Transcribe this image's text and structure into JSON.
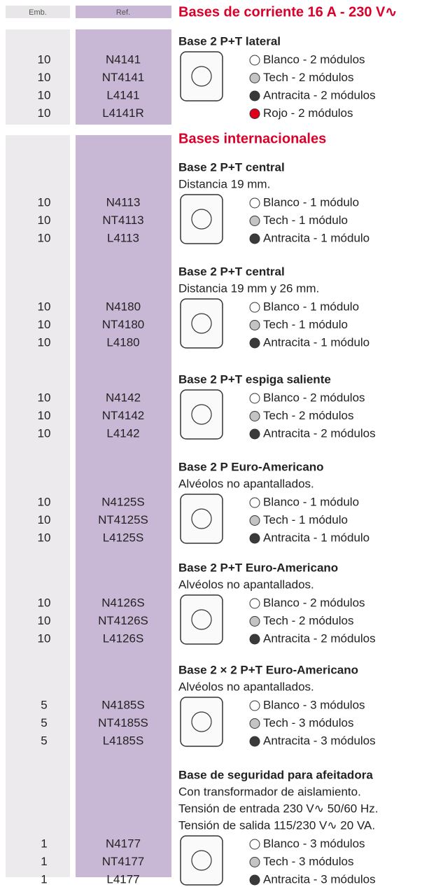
{
  "header": {
    "emb": "Emb.",
    "ref": "Ref.",
    "title": "Bases de corriente 16 A - 230 V∿"
  },
  "sections": [
    {
      "products": [
        {
          "title": "Base 2 P+T lateral",
          "notes": [],
          "items": [
            {
              "emb": 10,
              "ref": "N4141",
              "color": "#ffffff",
              "label": "Blanco - 2 módulos"
            },
            {
              "emb": 10,
              "ref": "NT4141",
              "color": "#c4c4c4",
              "label": "Tech - 2 módulos"
            },
            {
              "emb": 10,
              "ref": "L4141",
              "color": "#3a3a3a",
              "label": "Antracita - 2 módulos"
            },
            {
              "emb": 10,
              "ref": "L4141R",
              "color": "#e0001a",
              "label": "Rojo - 2 módulos"
            }
          ]
        }
      ]
    },
    {
      "title": "Bases internacionales",
      "products": [
        {
          "title": "Base 2 P+T central",
          "notes": [
            "Distancia 19 mm."
          ],
          "items": [
            {
              "emb": 10,
              "ref": "N4113",
              "color": "#ffffff",
              "label": "Blanco - 1 módulo"
            },
            {
              "emb": 10,
              "ref": "NT4113",
              "color": "#c4c4c4",
              "label": "Tech - 1 módulo"
            },
            {
              "emb": 10,
              "ref": "L4113",
              "color": "#3a3a3a",
              "label": "Antracita - 1 módulo"
            }
          ]
        },
        {
          "title": "Base 2 P+T central",
          "notes": [
            "Distancia 19 mm y 26 mm."
          ],
          "items": [
            {
              "emb": 10,
              "ref": "N4180",
              "color": "#ffffff",
              "label": "Blanco - 1 módulo"
            },
            {
              "emb": 10,
              "ref": "NT4180",
              "color": "#c4c4c4",
              "label": "Tech - 1 módulo"
            },
            {
              "emb": 10,
              "ref": "L4180",
              "color": "#3a3a3a",
              "label": "Antracita - 1 módulo"
            }
          ]
        },
        {
          "title": "Base 2 P+T espiga saliente",
          "notes": [],
          "items": [
            {
              "emb": 10,
              "ref": "N4142",
              "color": "#ffffff",
              "label": "Blanco - 2 módulos"
            },
            {
              "emb": 10,
              "ref": "NT4142",
              "color": "#c4c4c4",
              "label": "Tech - 2 módulos"
            },
            {
              "emb": 10,
              "ref": "L4142",
              "color": "#3a3a3a",
              "label": "Antracita - 2 módulos"
            }
          ]
        },
        {
          "title": "Base 2 P Euro-Americano",
          "notes": [
            "Alvéolos no apantallados."
          ],
          "items": [
            {
              "emb": 10,
              "ref": "N4125S",
              "color": "#ffffff",
              "label": "Blanco - 1 módulo"
            },
            {
              "emb": 10,
              "ref": "NT4125S",
              "color": "#c4c4c4",
              "label": "Tech - 1 módulo"
            },
            {
              "emb": 10,
              "ref": "L4125S",
              "color": "#3a3a3a",
              "label": "Antracita - 1 módulo"
            }
          ]
        },
        {
          "title": "Base 2 P+T Euro-Americano",
          "notes": [
            "Alvéolos no apantallados."
          ],
          "items": [
            {
              "emb": 10,
              "ref": "N4126S",
              "color": "#ffffff",
              "label": "Blanco - 2 módulos"
            },
            {
              "emb": 10,
              "ref": "NT4126S",
              "color": "#c4c4c4",
              "label": "Tech - 2 módulos"
            },
            {
              "emb": 10,
              "ref": "L4126S",
              "color": "#3a3a3a",
              "label": "Antracita - 2 módulos"
            }
          ]
        },
        {
          "title": "Base 2 × 2 P+T Euro-Americano",
          "notes": [
            "Alvéolos no apantallados."
          ],
          "items": [
            {
              "emb": 5,
              "ref": "N4185S",
              "color": "#ffffff",
              "label": "Blanco - 3 módulos"
            },
            {
              "emb": 5,
              "ref": "NT4185S",
              "color": "#c4c4c4",
              "label": "Tech - 3 módulos"
            },
            {
              "emb": 5,
              "ref": "L4185S",
              "color": "#3a3a3a",
              "label": "Antracita - 3 módulos"
            }
          ]
        },
        {
          "title": "Base de seguridad para afeitadora",
          "notes": [
            "Con transformador de aislamiento.",
            "Tensión de entrada 230 V∿ 50/60 Hz.",
            "Tensión de salida 115/230 V∿ 20 VA."
          ],
          "items": [
            {
              "emb": 1,
              "ref": "N4177",
              "color": "#ffffff",
              "label": "Blanco - 3 módulos"
            },
            {
              "emb": 1,
              "ref": "NT4177",
              "color": "#c4c4c4",
              "label": "Tech - 3 módulos"
            },
            {
              "emb": 1,
              "ref": "L4177",
              "color": "#3a3a3a",
              "label": "Antracita - 3 módulos"
            }
          ]
        }
      ]
    }
  ]
}
